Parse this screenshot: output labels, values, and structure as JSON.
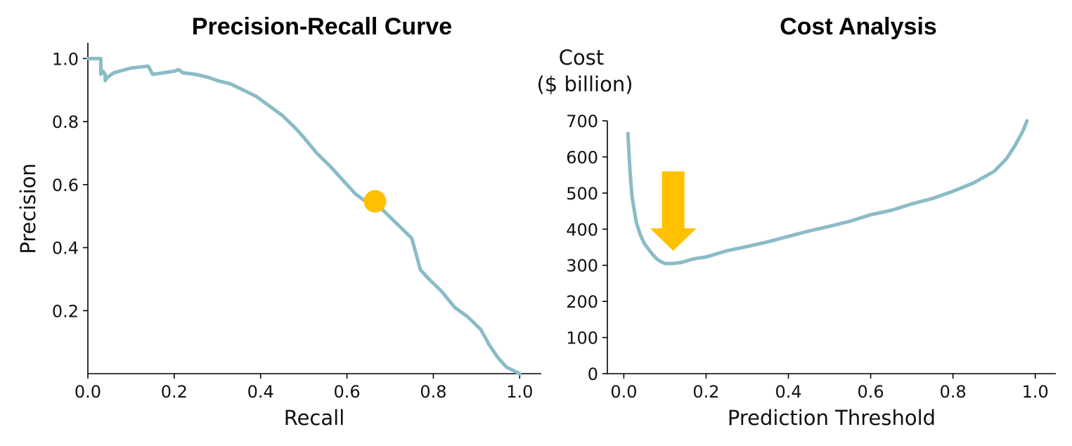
{
  "colors": {
    "curve": "#8bbcc6",
    "highlight": "#ffc000",
    "axis": "#000000"
  },
  "chart_data": [
    {
      "type": "line",
      "title": "Precision-Recall Curve",
      "xlabel": "Recall",
      "ylabel": "Precision",
      "xlim": [
        0.0,
        1.05
      ],
      "ylim": [
        0.0,
        1.05
      ],
      "xticks": [
        "0.0",
        "0.2",
        "0.4",
        "0.6",
        "0.8",
        "1.0"
      ],
      "yticks": [
        "0.2",
        "0.4",
        "0.6",
        "0.8",
        "1.0"
      ],
      "grid": false,
      "series": [
        {
          "x": [
            0.0,
            0.02,
            0.03,
            0.03,
            0.035,
            0.04,
            0.04,
            0.045,
            0.06,
            0.1,
            0.14,
            0.15,
            0.2,
            0.21,
            0.22,
            0.25,
            0.28,
            0.3,
            0.33,
            0.36,
            0.39,
            0.42,
            0.45,
            0.48,
            0.5,
            0.53,
            0.56,
            0.58,
            0.6,
            0.62,
            0.64,
            0.665,
            0.69,
            0.72,
            0.75,
            0.76,
            0.77,
            0.79,
            0.82,
            0.85,
            0.88,
            0.91,
            0.93,
            0.95,
            0.97,
            1.0
          ],
          "y": [
            1.0,
            1.0,
            1.0,
            0.95,
            0.96,
            0.95,
            0.93,
            0.94,
            0.955,
            0.97,
            0.976,
            0.95,
            0.96,
            0.965,
            0.955,
            0.95,
            0.94,
            0.93,
            0.92,
            0.9,
            0.88,
            0.85,
            0.82,
            0.78,
            0.75,
            0.7,
            0.66,
            0.63,
            0.6,
            0.57,
            0.55,
            0.545,
            0.51,
            0.47,
            0.43,
            0.38,
            0.33,
            0.3,
            0.26,
            0.21,
            0.18,
            0.14,
            0.09,
            0.05,
            0.02,
            0.0
          ]
        }
      ],
      "highlight_point": {
        "x": 0.665,
        "y": 0.547
      }
    },
    {
      "type": "line",
      "title": "Cost Analysis",
      "xlabel": "Prediction Threshold",
      "ylabel": [
        "Cost",
        "($ billion)"
      ],
      "xlim": [
        -0.04,
        1.05
      ],
      "ylim": [
        0,
        700
      ],
      "xticks": [
        "0.0",
        "0.2",
        "0.4",
        "0.6",
        "0.8",
        "1.0"
      ],
      "yticks": [
        "0",
        "100",
        "200",
        "300",
        "400",
        "500",
        "600",
        "700"
      ],
      "grid": false,
      "series": [
        {
          "x": [
            0.01,
            0.015,
            0.02,
            0.03,
            0.04,
            0.05,
            0.06,
            0.07,
            0.08,
            0.09,
            0.1,
            0.12,
            0.14,
            0.17,
            0.2,
            0.25,
            0.3,
            0.35,
            0.4,
            0.45,
            0.5,
            0.55,
            0.6,
            0.65,
            0.7,
            0.75,
            0.8,
            0.85,
            0.9,
            0.93,
            0.95,
            0.97,
            0.98
          ],
          "y": [
            665,
            560,
            490,
            420,
            385,
            360,
            345,
            330,
            318,
            310,
            305,
            305,
            308,
            318,
            323,
            340,
            352,
            365,
            380,
            395,
            408,
            422,
            440,
            452,
            470,
            485,
            505,
            528,
            560,
            595,
            630,
            672,
            700
          ]
        }
      ],
      "optimum_arrow": {
        "x": 0.12,
        "y_top": 560,
        "y_tip": 340
      }
    }
  ]
}
